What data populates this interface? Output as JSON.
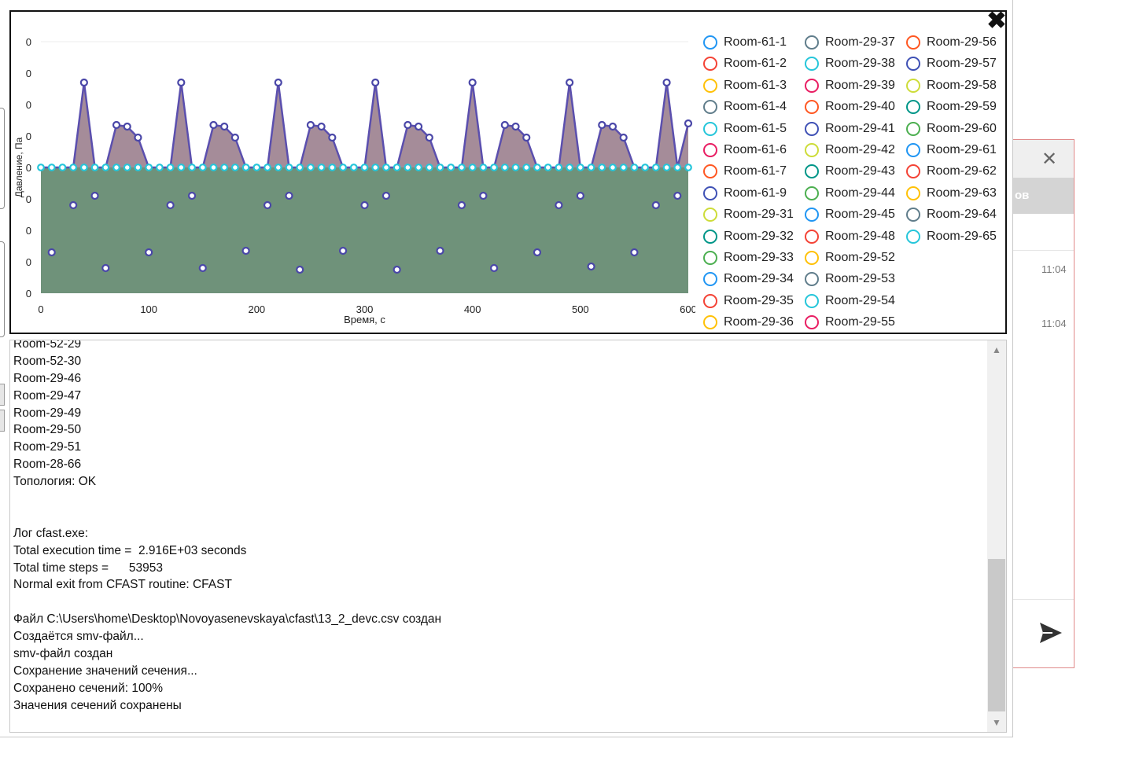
{
  "chart_data": {
    "type": "area",
    "xlabel": "Время, с",
    "ylabel": "Давление, Па",
    "xlim": [
      0,
      600
    ],
    "ylim": [
      -4,
      4
    ],
    "x_ticks": [
      "0",
      "100",
      "200",
      "300",
      "400",
      "500",
      "600"
    ],
    "y_ticks": [
      "0",
      "0",
      "0",
      "0",
      "0",
      "0",
      "0",
      "0",
      "0"
    ],
    "grid": false,
    "legend_position": "right",
    "series_upper": {
      "x": [
        0,
        30,
        40,
        50,
        60,
        70,
        80,
        90,
        100,
        120,
        130,
        140,
        150,
        160,
        170,
        180,
        190,
        210,
        220,
        230,
        240,
        250,
        260,
        270,
        280,
        300,
        310,
        320,
        330,
        340,
        350,
        360,
        370,
        390,
        400,
        410,
        420,
        430,
        440,
        450,
        460,
        480,
        490,
        500,
        510,
        520,
        530,
        540,
        550,
        570,
        580,
        590,
        600
      ],
      "y": [
        0,
        0,
        2.7,
        0,
        0,
        1.35,
        1.3,
        0.95,
        0,
        0,
        2.7,
        0,
        0,
        1.35,
        1.3,
        0.95,
        0,
        0,
        2.7,
        0,
        0,
        1.35,
        1.3,
        0.95,
        0,
        0,
        2.7,
        0,
        0,
        1.35,
        1.3,
        0.95,
        0,
        0,
        2.7,
        0,
        0,
        1.35,
        1.3,
        0.95,
        0,
        0,
        2.7,
        0,
        0,
        1.35,
        1.3,
        0.95,
        0,
        0,
        2.7,
        0,
        1.4
      ]
    },
    "baseline": {
      "x": [
        0,
        600
      ],
      "y": [
        0,
        0
      ]
    },
    "scatter_lower": {
      "x": [
        10,
        30,
        50,
        60,
        100,
        120,
        140,
        150,
        190,
        210,
        230,
        240,
        280,
        300,
        320,
        330,
        370,
        390,
        410,
        420,
        460,
        480,
        500,
        510,
        550,
        570,
        590
      ],
      "y": [
        -2.7,
        -1.2,
        -0.9,
        -3.2,
        -2.7,
        -1.2,
        -0.9,
        -3.2,
        -2.65,
        -1.2,
        -0.9,
        -3.25,
        -2.65,
        -1.2,
        -0.9,
        -3.25,
        -2.65,
        -1.2,
        -0.9,
        -3.2,
        -2.7,
        -1.2,
        -0.9,
        -3.15,
        -2.7,
        -1.2,
        -0.9
      ]
    },
    "legend": [
      {
        "label": "Room-61-1",
        "color": "#2196f3"
      },
      {
        "label": "Room-61-2",
        "color": "#f44336"
      },
      {
        "label": "Room-61-3",
        "color": "#ffc107"
      },
      {
        "label": "Room-61-4",
        "color": "#607d8b"
      },
      {
        "label": "Room-61-5",
        "color": "#26c6da"
      },
      {
        "label": "Room-61-6",
        "color": "#e91e63"
      },
      {
        "label": "Room-61-7",
        "color": "#ff5722"
      },
      {
        "label": "Room-61-9",
        "color": "#3f51b5"
      },
      {
        "label": "Room-29-31",
        "color": "#cddc39"
      },
      {
        "label": "Room-29-32",
        "color": "#009688"
      },
      {
        "label": "Room-29-33",
        "color": "#4caf50"
      },
      {
        "label": "Room-29-34",
        "color": "#2196f3"
      },
      {
        "label": "Room-29-35",
        "color": "#f44336"
      },
      {
        "label": "Room-29-36",
        "color": "#ffc107"
      },
      {
        "label": "Room-29-37",
        "color": "#607d8b"
      },
      {
        "label": "Room-29-38",
        "color": "#26c6da"
      },
      {
        "label": "Room-29-39",
        "color": "#e91e63"
      },
      {
        "label": "Room-29-40",
        "color": "#ff5722"
      },
      {
        "label": "Room-29-41",
        "color": "#3f51b5"
      },
      {
        "label": "Room-29-42",
        "color": "#cddc39"
      },
      {
        "label": "Room-29-43",
        "color": "#009688"
      },
      {
        "label": "Room-29-44",
        "color": "#4caf50"
      },
      {
        "label": "Room-29-45",
        "color": "#2196f3"
      },
      {
        "label": "Room-29-48",
        "color": "#f44336"
      },
      {
        "label": "Room-29-52",
        "color": "#ffc107"
      },
      {
        "label": "Room-29-53",
        "color": "#607d8b"
      },
      {
        "label": "Room-29-54",
        "color": "#26c6da"
      },
      {
        "label": "Room-29-55",
        "color": "#e91e63"
      },
      {
        "label": "Room-29-56",
        "color": "#ff5722"
      },
      {
        "label": "Room-29-57",
        "color": "#3f51b5"
      },
      {
        "label": "Room-29-58",
        "color": "#cddc39"
      },
      {
        "label": "Room-29-59",
        "color": "#009688"
      },
      {
        "label": "Room-29-60",
        "color": "#4caf50"
      },
      {
        "label": "Room-29-61",
        "color": "#2196f3"
      },
      {
        "label": "Room-29-62",
        "color": "#f44336"
      },
      {
        "label": "Room-29-63",
        "color": "#ffc107"
      },
      {
        "label": "Room-29-64",
        "color": "#607d8b"
      },
      {
        "label": "Room-29-65",
        "color": "#26c6da"
      }
    ],
    "colors": {
      "upper_fill": "#a58c99",
      "lower_fill": "#6f927a",
      "upper_line": "#5b4fae",
      "marker_stroke": "#4a47a8",
      "baseline_marker": "#26c6da"
    }
  },
  "popup": {
    "close_icon": "close-x-icon"
  },
  "side_panel": {
    "band_text": "ов",
    "time_1": "11:04",
    "time_2": "11:04",
    "send_icon": "send-icon",
    "close_icon": "close-icon"
  },
  "log": {
    "lines": [
      "Room-52-29",
      "Room-52-30",
      "Room-29-46",
      "Room-29-47",
      "Room-29-49",
      "Room-29-50",
      "Room-29-51",
      "Room-28-66",
      "Топология: OK",
      "",
      "",
      "Лог cfast.exe:",
      "Total execution time =  2.916E+03 seconds",
      "Total time steps =      53953",
      "Normal exit from CFAST routine: CFAST",
      "",
      "Файл C:\\Users\\home\\Desktop\\Novoyasenevskaya\\cfast\\13_2_devc.csv создан",
      "Создаётся smv-файл...",
      "smv-файл создан",
      "Сохранение значений сечения...",
      "Сохранено сечений: 100%",
      "Значения сечений сохранены"
    ]
  }
}
